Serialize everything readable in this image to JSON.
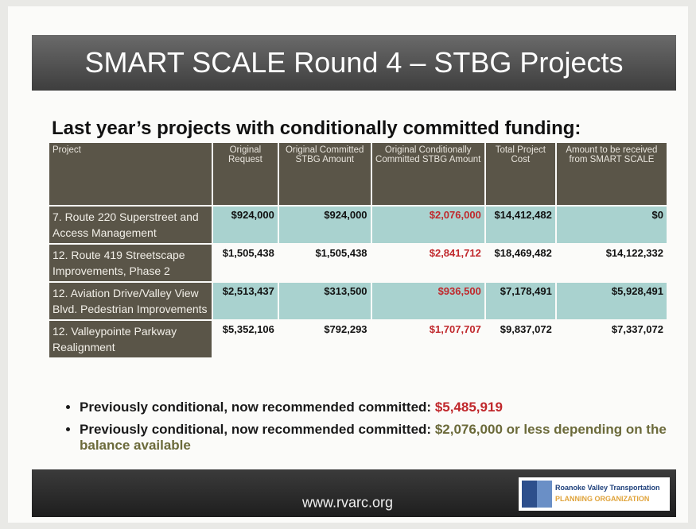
{
  "title": "SMART SCALE Round 4 – STBG Projects",
  "subtitle": "Last year’s projects with conditionally committed funding:",
  "table": {
    "header": [
      "Project",
      "Original Request",
      "Original Committed STBG Amount",
      "Original Conditionally Committed STBG Amount",
      "Total Project Cost",
      "Amount to be received from SMART SCALE"
    ],
    "rows": [
      [
        "7. Route 220 Superstreet and Access Management",
        "$924,000",
        "$924,000",
        "$2,076,000",
        "$14,412,482",
        "$0"
      ],
      [
        "12. Route 419 Streetscape Improvements, Phase 2",
        "$1,505,438",
        "$1,505,438",
        "$2,841,712",
        "$18,469,482",
        "$14,122,332"
      ],
      [
        "12. Aviation Drive/Valley View Blvd. Pedestrian Improvements",
        "$2,513,437",
        "$313,500",
        "$936,500",
        "$7,178,491",
        "$5,928,491"
      ],
      [
        "12. Valleypointe Parkway Realignment",
        "$5,352,106",
        "$792,293",
        "$1,707,707",
        "$9,837,072",
        "$7,337,072"
      ]
    ]
  },
  "bullets": [
    {
      "text": "Previously conditional, now recommended committed:",
      "amount": "$5,485,919"
    },
    {
      "text": "Previously conditional, now recommended committed:",
      "amount": "$2,076,000 or less depending on the balance available"
    }
  ],
  "footer": {
    "url": "www.rvarc.org",
    "logo_line1": "Roanoke Valley Transportation",
    "logo_line2": "PLANNING ORGANIZATION"
  }
}
